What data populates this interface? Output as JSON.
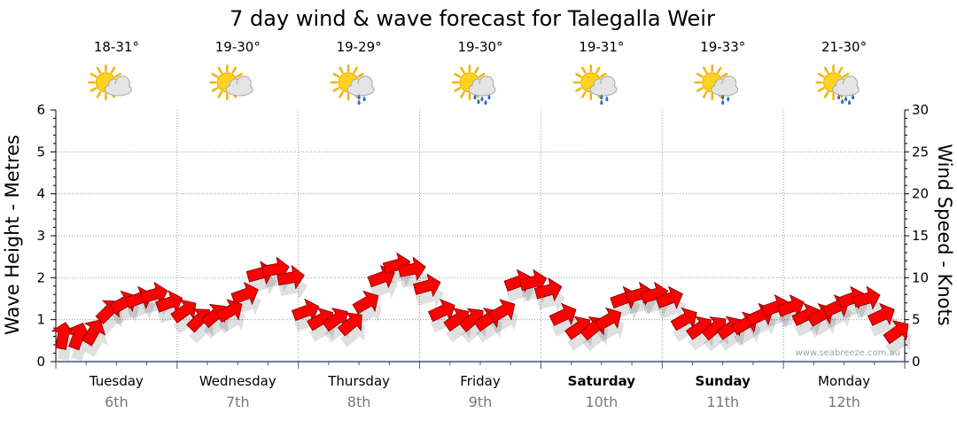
{
  "chart_data": {
    "type": "line",
    "title": "7 day wind & wave forecast for Talegalla Weir",
    "ylabel_left": "Wave Height - Metres",
    "ylabel_right": "Wind Speed - Knots",
    "ylim_left": [
      0,
      6
    ],
    "ylim_right": [
      0,
      30
    ],
    "yticks_left": [
      "0",
      "1",
      "2",
      "3",
      "4",
      "5",
      "6"
    ],
    "yticks_right": [
      "0",
      "5",
      "10",
      "15",
      "20",
      "25",
      "30"
    ],
    "watermark": "www.seabreeze.com.au",
    "days": [
      {
        "name": "Tuesday",
        "date": "6th",
        "temp": "18-31°",
        "icon": "sun-cloud-icon",
        "bold": false
      },
      {
        "name": "Wednesday",
        "date": "7th",
        "temp": "19-30°",
        "icon": "sun-cloud-icon",
        "bold": false
      },
      {
        "name": "Thursday",
        "date": "8th",
        "temp": "19-29°",
        "icon": "sun-cloud-rain-icon",
        "bold": false
      },
      {
        "name": "Friday",
        "date": "9th",
        "temp": "19-30°",
        "icon": "sun-cloud-heavy-rain-icon",
        "bold": false
      },
      {
        "name": "Saturday",
        "date": "10th",
        "temp": "19-31°",
        "icon": "sun-cloud-rain-icon",
        "bold": true
      },
      {
        "name": "Sunday",
        "date": "11th",
        "temp": "19-33°",
        "icon": "sun-cloud-rain-icon",
        "bold": true
      },
      {
        "name": "Monday",
        "date": "12th",
        "temp": "21-30°",
        "icon": "sun-cloud-heavy-rain-icon",
        "bold": false
      }
    ],
    "series": [
      {
        "name": "Wind Speed (knots)",
        "color": "#ff0000",
        "x_hours": [
          0,
          3,
          6,
          9,
          12,
          15,
          18,
          21,
          24,
          27,
          30,
          33,
          36,
          39,
          42,
          45,
          48,
          51,
          54,
          57,
          60,
          63,
          66,
          69,
          72,
          75,
          78,
          81,
          84,
          87,
          90,
          93,
          96,
          99,
          102,
          105,
          108,
          111,
          114,
          117,
          120,
          123,
          126,
          129,
          132,
          135,
          138,
          141,
          144,
          147,
          150,
          153,
          156,
          159,
          162,
          165
        ],
        "values": [
          3,
          3,
          3.5,
          6,
          7,
          7.5,
          8,
          7,
          6,
          5,
          5.5,
          6,
          8,
          10.5,
          11,
          10,
          6,
          5,
          5,
          4.5,
          7,
          10,
          11.5,
          11,
          9,
          6,
          5,
          5,
          5,
          6,
          9.5,
          9.5,
          8.5,
          5.5,
          4,
          4,
          5,
          7.5,
          8,
          8,
          7.5,
          5,
          4,
          4,
          4,
          4.5,
          5.5,
          6.5,
          6.5,
          5.5,
          5.5,
          6.5,
          7.5,
          7.5,
          5.5,
          3.5
        ],
        "directions_deg": [
          190,
          200,
          210,
          225,
          240,
          250,
          255,
          250,
          235,
          225,
          230,
          240,
          250,
          255,
          260,
          260,
          250,
          240,
          235,
          230,
          240,
          250,
          255,
          260,
          255,
          245,
          235,
          230,
          235,
          240,
          250,
          255,
          255,
          245,
          235,
          230,
          240,
          250,
          255,
          255,
          250,
          240,
          235,
          230,
          235,
          240,
          245,
          250,
          250,
          245,
          240,
          245,
          250,
          255,
          245,
          235
        ]
      }
    ]
  }
}
